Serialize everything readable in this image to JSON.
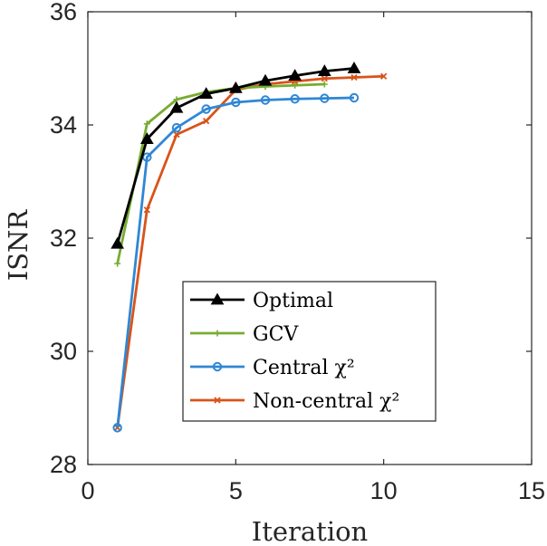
{
  "chart_data": {
    "type": "line",
    "xlabel": "Iteration",
    "ylabel": "ISNR",
    "xlim": [
      0,
      15
    ],
    "ylim": [
      28,
      36
    ],
    "xticks": [
      "0",
      "5",
      "10",
      "15"
    ],
    "yticks": [
      "28",
      "30",
      "32",
      "34",
      "36"
    ],
    "grid": false,
    "legend_position": "lower-center",
    "series": [
      {
        "name": "Optimal",
        "color": "#000000",
        "marker": "triangle",
        "x": [
          1,
          2,
          3,
          4,
          5,
          6,
          7,
          8,
          9
        ],
        "y": [
          31.9,
          33.75,
          34.3,
          34.55,
          34.65,
          34.78,
          34.87,
          34.95,
          35.0
        ]
      },
      {
        "name": "GCV",
        "color": "#77ac30",
        "marker": "plus",
        "x": [
          1,
          2,
          3,
          4,
          5,
          6,
          7,
          8
        ],
        "y": [
          31.55,
          34.02,
          34.45,
          34.58,
          34.65,
          34.68,
          34.7,
          34.72
        ]
      },
      {
        "name": "Central χ²",
        "color": "#2f87d4",
        "marker": "circle",
        "x": [
          1,
          2,
          3,
          4,
          5,
          6,
          7,
          8,
          9
        ],
        "y": [
          28.65,
          33.43,
          33.95,
          34.28,
          34.4,
          34.44,
          34.46,
          34.47,
          34.48
        ]
      },
      {
        "name": "Non-central χ²",
        "color": "#d95319",
        "marker": "cross",
        "x": [
          1,
          2,
          3,
          4,
          5,
          6,
          7,
          8,
          9,
          10
        ],
        "y": [
          28.65,
          32.5,
          33.83,
          34.07,
          34.62,
          34.72,
          34.77,
          34.82,
          34.84,
          34.86
        ]
      }
    ]
  }
}
